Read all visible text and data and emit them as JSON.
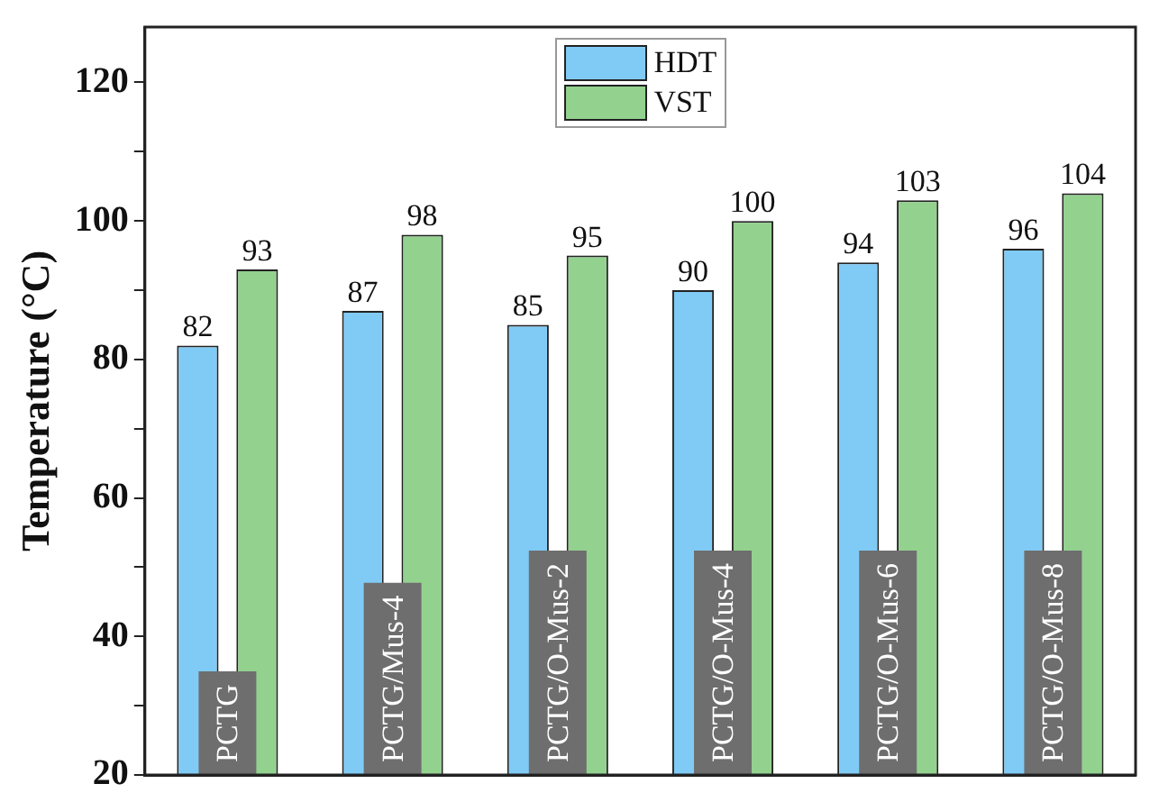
{
  "chart_data": {
    "type": "bar",
    "ylabel": "Temperature (°C)",
    "categories": [
      "PCTG",
      "PCTG/Mus-4",
      "PCTG/O-Mus-2",
      "PCTG/O-Mus-4",
      "PCTG/O-Mus-6",
      "PCTG/O-Mus-8"
    ],
    "series": [
      {
        "name": "HDT",
        "color": "#80cbf5",
        "values": [
          82,
          87,
          85,
          90,
          94,
          96
        ]
      },
      {
        "name": "VST",
        "color": "#93d18f",
        "values": [
          93,
          98,
          95,
          100,
          103,
          104
        ]
      }
    ],
    "ylim": [
      20,
      128
    ],
    "yticks": [
      20,
      {
        "value": 30,
        "label": null
      },
      40,
      {
        "value": 50,
        "label": null
      },
      60,
      {
        "value": 70,
        "label": null
      },
      80,
      {
        "value": 90,
        "label": null
      },
      100,
      {
        "value": 110,
        "label": null
      },
      120
    ],
    "data_labels": true,
    "legend": "top",
    "grid": false
  }
}
